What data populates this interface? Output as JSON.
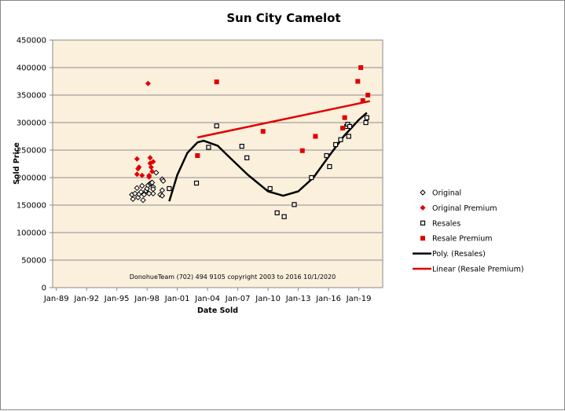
{
  "chart_data": {
    "type": "scatter",
    "title": "Sun City Camelot",
    "xlabel": "Date Sold",
    "ylabel": "Sold Price",
    "xlim": [
      1989,
      2021
    ],
    "ylim": [
      0,
      450000
    ],
    "grid": "horizontal",
    "legend_position": "right",
    "x_ticks": [
      {
        "value": 1989,
        "label": "Jan-89"
      },
      {
        "value": 1992,
        "label": "Jan-92"
      },
      {
        "value": 1995,
        "label": "Jan-95"
      },
      {
        "value": 1998,
        "label": "Jan-98"
      },
      {
        "value": 2001,
        "label": "Jan-01"
      },
      {
        "value": 2004,
        "label": "Jan-04"
      },
      {
        "value": 2007,
        "label": "Jan-07"
      },
      {
        "value": 2010,
        "label": "Jan-10"
      },
      {
        "value": 2013,
        "label": "Jan-13"
      },
      {
        "value": 2016,
        "label": "Jan-16"
      },
      {
        "value": 2019,
        "label": "Jan-19"
      }
    ],
    "y_ticks": [
      {
        "value": 0,
        "label": "0"
      },
      {
        "value": 50000,
        "label": "50000"
      },
      {
        "value": 100000,
        "label": "100000"
      },
      {
        "value": 150000,
        "label": "150000"
      },
      {
        "value": 200000,
        "label": "200000"
      },
      {
        "value": 250000,
        "label": "250000"
      },
      {
        "value": 300000,
        "label": "300000"
      },
      {
        "value": 350000,
        "label": "350000"
      },
      {
        "value": 400000,
        "label": "400000"
      },
      {
        "value": 450000,
        "label": "450000"
      }
    ],
    "annotation": "DonohueTeam   (702) 494 9105  copyright  2003 to 2016  10/1/2020",
    "series": [
      {
        "name": "Original",
        "marker": "diamond-open",
        "color": "#000000",
        "points": [
          [
            1996.5,
            169000
          ],
          [
            1996.6,
            161000
          ],
          [
            1997.0,
            181000
          ],
          [
            1997.1,
            164000
          ],
          [
            1997.2,
            170000
          ],
          [
            1997.5,
            185000
          ],
          [
            1997.6,
            159000
          ],
          [
            1997.9,
            176000
          ],
          [
            1998.0,
            180000
          ],
          [
            1998.1,
            186000
          ],
          [
            1998.3,
            189000
          ],
          [
            1998.4,
            190000
          ],
          [
            1998.5,
            191000
          ],
          [
            1998.6,
            183000
          ],
          [
            1998.6,
            179000
          ],
          [
            1998.6,
            171000
          ],
          [
            1998.9,
            209000
          ],
          [
            1999.5,
            197000
          ],
          [
            1999.6,
            194000
          ],
          [
            1999.5,
            177000
          ],
          [
            1999.3,
            169000
          ],
          [
            1999.5,
            167000
          ],
          [
            1996.8,
            171000
          ],
          [
            1997.7,
            169000
          ],
          [
            1998.2,
            171000
          ],
          [
            1997.4,
            174000
          ]
        ]
      },
      {
        "name": "Original Premium",
        "marker": "diamond-filled",
        "color": "#e00000",
        "points": [
          [
            1998.1,
            371000
          ],
          [
            1997.0,
            234000
          ],
          [
            1997.2,
            219000
          ],
          [
            1997.1,
            216000
          ],
          [
            1997.0,
            206000
          ],
          [
            1997.5,
            204000
          ],
          [
            1998.3,
            236000
          ],
          [
            1998.3,
            226000
          ],
          [
            1998.6,
            229000
          ],
          [
            1998.4,
            219000
          ],
          [
            1998.5,
            211000
          ],
          [
            1998.2,
            204000
          ],
          [
            1998.2,
            201000
          ]
        ]
      },
      {
        "name": "Resales",
        "marker": "square-open",
        "color": "#000000",
        "points": [
          [
            2000.2,
            180000
          ],
          [
            2002.9,
            190000
          ],
          [
            2004.1,
            255000
          ],
          [
            2004.9,
            294000
          ],
          [
            2007.4,
            257000
          ],
          [
            2007.9,
            236000
          ],
          [
            2010.2,
            180000
          ],
          [
            2010.9,
            136000
          ],
          [
            2011.6,
            129000
          ],
          [
            2012.6,
            151000
          ],
          [
            2014.3,
            200000
          ],
          [
            2015.8,
            240000
          ],
          [
            2016.1,
            220000
          ],
          [
            2016.7,
            260000
          ],
          [
            2017.2,
            269000
          ],
          [
            2017.8,
            293000
          ],
          [
            2017.9,
            297000
          ],
          [
            2018.1,
            293000
          ],
          [
            2018.0,
            275000
          ],
          [
            2019.8,
            309000
          ],
          [
            2019.7,
            300000
          ]
        ]
      },
      {
        "name": "Resale Premium",
        "marker": "square-filled",
        "color": "#e00000",
        "points": [
          [
            2003.0,
            240000
          ],
          [
            2004.9,
            374000
          ],
          [
            2009.5,
            284000
          ],
          [
            2013.4,
            249000
          ],
          [
            2014.7,
            275000
          ],
          [
            2017.4,
            290000
          ],
          [
            2017.6,
            309000
          ],
          [
            2018.9,
            375000
          ],
          [
            2019.2,
            400000
          ],
          [
            2019.4,
            340000
          ],
          [
            2019.9,
            350000
          ]
        ]
      }
    ],
    "trendlines": [
      {
        "name": "Poly. (Resales)",
        "type": "polynomial",
        "color": "#000000",
        "points": [
          [
            2000.2,
            157000
          ],
          [
            2001,
            205000
          ],
          [
            2002,
            245000
          ],
          [
            2003,
            264000
          ],
          [
            2003.6,
            267000
          ],
          [
            2005,
            258000
          ],
          [
            2006,
            240000
          ],
          [
            2008,
            205000
          ],
          [
            2010,
            175000
          ],
          [
            2011.5,
            167000
          ],
          [
            2013,
            175000
          ],
          [
            2014.5,
            200000
          ],
          [
            2016,
            238000
          ],
          [
            2017.5,
            275000
          ],
          [
            2019,
            305000
          ],
          [
            2019.8,
            318000
          ]
        ]
      },
      {
        "name": "Linear (Resale Premium)",
        "type": "linear",
        "color": "#e00000",
        "points": [
          [
            2003.0,
            273000
          ],
          [
            2020.1,
            339000
          ]
        ]
      }
    ]
  }
}
